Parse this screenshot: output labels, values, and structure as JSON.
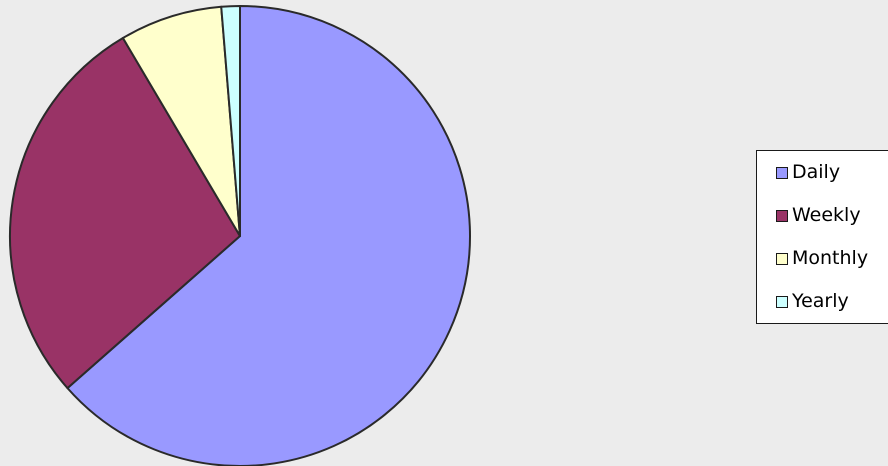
{
  "chart_data": {
    "type": "pie",
    "categories": [
      "Daily",
      "Weekly",
      "Monthly",
      "Yearly"
    ],
    "values": [
      63.5,
      28.0,
      7.2,
      1.3
    ],
    "colors": [
      "#9999ff",
      "#993366",
      "#ffffcc",
      "#ccffff"
    ],
    "start_angle": "12 o'clock",
    "direction": "clockwise",
    "legend_position": "right",
    "title": "",
    "outline_color": "#2a2a2a"
  },
  "legend": {
    "items": [
      {
        "label": "Daily",
        "color": "#9999ff"
      },
      {
        "label": "Weekly",
        "color": "#993366"
      },
      {
        "label": "Monthly",
        "color": "#ffffcc"
      },
      {
        "label": "Yearly",
        "color": "#ccffff"
      }
    ]
  }
}
